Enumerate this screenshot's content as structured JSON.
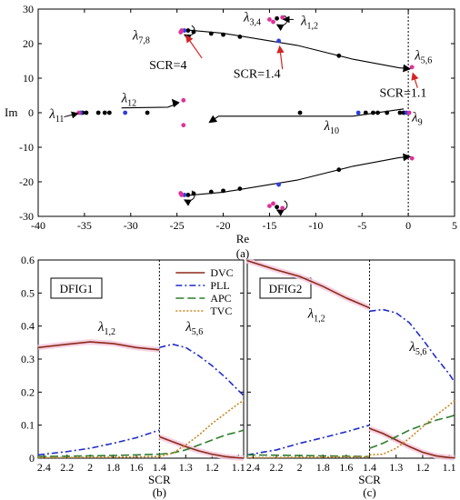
{
  "chart_data": [
    {
      "id": "a",
      "type": "scatter",
      "panel_label": "(a)",
      "xlabel": "Re",
      "ylabel": "Im",
      "xlim": [
        -40,
        5
      ],
      "ylim": [
        -30,
        30
      ],
      "xticks": [
        "-40",
        "-35",
        "-30",
        "-25",
        "-20",
        "-15",
        "-10",
        "-5",
        "0",
        "5"
      ],
      "xtick_values": [
        -40,
        -35,
        -30,
        -25,
        -20,
        -15,
        -10,
        -5,
        0,
        5
      ],
      "yticks": [
        "-30",
        "-20",
        "-10",
        "0",
        "10",
        "20",
        "30"
      ],
      "ytick_values": [
        -30,
        -20,
        -10,
        0,
        10,
        20,
        30
      ],
      "reference_line_x": 0,
      "series": [
        {
          "color": "#000000",
          "points": [
            [
              -35.2,
              0
            ],
            [
              -34.8,
              0
            ],
            [
              -33.5,
              0
            ],
            [
              -32.8,
              0
            ],
            [
              -32.3,
              0
            ],
            [
              -28.2,
              0
            ],
            [
              -23.8,
              23.8
            ],
            [
              -23.2,
              23.4
            ],
            [
              -21.3,
              22.9
            ],
            [
              -20.0,
              22.6
            ],
            [
              -18.2,
              22.0
            ],
            [
              -14.2,
              27.3
            ],
            [
              -7.5,
              16.5
            ],
            [
              -23.8,
              -23.8
            ],
            [
              -23.2,
              -23.4
            ],
            [
              -21.3,
              -22.9
            ],
            [
              -20.0,
              -22.6
            ],
            [
              -18.2,
              -22.0
            ],
            [
              -14.2,
              -27.3
            ],
            [
              -7.5,
              -16.5
            ],
            [
              -11.7,
              0
            ],
            [
              -4.6,
              0
            ],
            [
              -3.8,
              0
            ],
            [
              -3.3,
              0
            ],
            [
              -2.3,
              0
            ],
            [
              -0.9,
              0
            ],
            [
              -0.5,
              0
            ]
          ]
        },
        {
          "color": "#2b3fe0",
          "points": [
            [
              -35.4,
              0
            ],
            [
              -30.6,
              0
            ],
            [
              -24.2,
              23.8
            ],
            [
              -24.2,
              -23.8
            ],
            [
              -14.0,
              20.8
            ],
            [
              -14.0,
              -20.8
            ],
            [
              -5.4,
              0
            ],
            [
              -0.2,
              0
            ]
          ]
        },
        {
          "color": "#e0319a",
          "points": [
            [
              -35.6,
              0
            ],
            [
              -24.6,
              23.3
            ],
            [
              -24.6,
              -23.3
            ],
            [
              -24.5,
              23.8
            ],
            [
              -24.5,
              -23.8
            ],
            [
              -24.3,
              3.6
            ],
            [
              -24.3,
              -3.6
            ],
            [
              -15.0,
              27.0
            ],
            [
              -15.0,
              -27.0
            ],
            [
              -14.6,
              26.3
            ],
            [
              -14.6,
              -26.3
            ],
            [
              -13.6,
              27.6
            ],
            [
              -13.6,
              -27.6
            ],
            [
              0.4,
              13.2
            ],
            [
              0.4,
              -13.2
            ],
            [
              0.1,
              0
            ]
          ]
        }
      ],
      "trajectories": [
        [
          [
            -24.1,
            24.0
          ],
          [
            -20,
            23.0
          ],
          [
            -12,
            19.5
          ],
          [
            -6,
            15.5
          ],
          [
            -1,
            13.0
          ],
          [
            0.2,
            12.7
          ]
        ],
        [
          [
            -24.1,
            -24.0
          ],
          [
            -20,
            -23.0
          ],
          [
            -12,
            -19.5
          ],
          [
            -6,
            -15.5
          ],
          [
            -1,
            -13.0
          ],
          [
            0.2,
            -12.7
          ]
        ],
        [
          [
            -31.0,
            1.4
          ],
          [
            -26.0,
            1.6
          ],
          [
            -25.1,
            2.5
          ],
          [
            -25.5,
            3.8
          ]
        ],
        [
          [
            -0.5,
            1.1
          ],
          [
            -6.0,
            -1.0
          ],
          [
            -20.5,
            -1.0
          ],
          [
            -21.5,
            -2.8
          ]
        ]
      ],
      "annotations": [
        {
          "text": "λ",
          "sub": "3,4",
          "x": -17.8,
          "y": 26.4
        },
        {
          "text": "λ",
          "sub": "1,2",
          "x": -11.6,
          "y": 25.4
        },
        {
          "text": "λ",
          "sub": "7,8",
          "x": -29.8,
          "y": 21.2
        },
        {
          "text": "λ",
          "sub": "5,6",
          "x": 0.7,
          "y": 15.4
        },
        {
          "text": "λ",
          "sub": "12",
          "x": -31.0,
          "y": 3.0
        },
        {
          "text": "λ",
          "sub": "11",
          "x": -38.8,
          "y": -1.6
        },
        {
          "text": "λ",
          "sub": "9",
          "x": 0.4,
          "y": -2.5
        },
        {
          "text": "λ",
          "sub": "10",
          "x": -9.1,
          "y": -5.0
        },
        {
          "text": "SCR=4",
          "sub": "",
          "x": -28.0,
          "y": 12.6
        },
        {
          "text": "SCR=1.4",
          "sub": "",
          "x": -18.9,
          "y": 10.1
        },
        {
          "text": "SCR=1.1",
          "sub": "",
          "x": -3.1,
          "y": 4.6
        }
      ]
    },
    {
      "id": "b",
      "type": "line",
      "panel_label": "(b)",
      "box_label": "DFIG1",
      "xlabel": "SCR",
      "ylabel": "",
      "ylim": [
        0,
        0.6
      ],
      "yticks": [
        "0",
        "0.1",
        "0.2",
        "0.3",
        "0.4",
        "0.5",
        "0.6"
      ],
      "ytick_values": [
        0,
        0.1,
        0.2,
        0.3,
        0.4,
        0.5,
        0.6
      ],
      "xticks": [
        "2.4",
        "2.2",
        "2",
        "1.8",
        "1.6",
        "1.4",
        "1.3",
        "1.2",
        "1.1"
      ],
      "x_split": 1.4,
      "legend": {
        "position": "top-right",
        "entries": [
          "DVC",
          "PLL",
          "APC",
          "TVC"
        ]
      },
      "series_annotations": [
        {
          "text": "λ",
          "sub": "1,2",
          "x": 1.93,
          "y": 0.385
        },
        {
          "text": "λ",
          "sub": "5,6",
          "x": 1.3,
          "y": 0.385
        }
      ],
      "series": [
        {
          "name": "DVC",
          "color": "#8b2a1c",
          "dash": "",
          "x": [
            2.45,
            2.2,
            2.0,
            1.8,
            1.6,
            1.4,
            1.4,
            1.35,
            1.3,
            1.25,
            1.2,
            1.15,
            1.1,
            1.08
          ],
          "values": [
            0.335,
            0.345,
            0.352,
            0.347,
            0.335,
            0.328,
            0.065,
            0.05,
            0.035,
            0.022,
            0.012,
            0.005,
            0.001,
            0
          ]
        },
        {
          "name": "PLL",
          "color": "#1f2bc8",
          "dash": "7 3 2 3",
          "x": [
            2.45,
            2.2,
            2.0,
            1.8,
            1.6,
            1.4,
            1.4,
            1.35,
            1.3,
            1.25,
            1.2,
            1.15,
            1.1,
            1.08
          ],
          "values": [
            0.01,
            0.02,
            0.03,
            0.045,
            0.062,
            0.085,
            0.335,
            0.345,
            0.335,
            0.31,
            0.28,
            0.245,
            0.205,
            0.19
          ]
        },
        {
          "name": "APC",
          "color": "#2f7d2f",
          "dash": "9 4",
          "x": [
            2.45,
            2.2,
            2.0,
            1.8,
            1.6,
            1.4,
            1.4,
            1.35,
            1.3,
            1.25,
            1.2,
            1.15,
            1.1,
            1.08
          ],
          "values": [
            0.005,
            0.006,
            0.007,
            0.008,
            0.01,
            0.012,
            0.012,
            0.016,
            0.025,
            0.04,
            0.055,
            0.07,
            0.08,
            0.085
          ]
        },
        {
          "name": "TVC",
          "color": "#c8861d",
          "dash": "2 2",
          "x": [
            2.45,
            2.2,
            2.0,
            1.8,
            1.6,
            1.4,
            1.4,
            1.35,
            1.3,
            1.25,
            1.2,
            1.15,
            1.1,
            1.08
          ],
          "values": [
            0.002,
            0.002,
            0.003,
            0.003,
            0.004,
            0.005,
            0.005,
            0.015,
            0.04,
            0.07,
            0.105,
            0.135,
            0.165,
            0.175
          ]
        }
      ]
    },
    {
      "id": "c",
      "type": "line",
      "panel_label": "(c)",
      "box_label": "DFIG2",
      "xlabel": "SCR",
      "ylabel": "",
      "ylim": [
        0,
        0.6
      ],
      "xticks": [
        "2.4",
        "2.2",
        "2",
        "1.8",
        "1.6",
        "1.4",
        "1.3",
        "1.2",
        "1.1"
      ],
      "x_split": 1.4,
      "series_annotations": [
        {
          "text": "λ",
          "sub": "1,2",
          "x": 1.93,
          "y": 0.425
        },
        {
          "text": "λ",
          "sub": "5,6",
          "x": 1.25,
          "y": 0.325
        }
      ],
      "series": [
        {
          "name": "DVC",
          "color": "#8b2a1c",
          "dash": "",
          "x": [
            2.45,
            2.2,
            2.0,
            1.8,
            1.6,
            1.4,
            1.4,
            1.35,
            1.3,
            1.25,
            1.2,
            1.15,
            1.1,
            1.08
          ],
          "values": [
            0.598,
            0.57,
            0.55,
            0.52,
            0.485,
            0.455,
            0.09,
            0.075,
            0.055,
            0.035,
            0.018,
            0.007,
            0.002,
            0.001
          ]
        },
        {
          "name": "PLL",
          "color": "#1f2bc8",
          "dash": "7 3 2 3",
          "x": [
            2.45,
            2.2,
            2.0,
            1.8,
            1.6,
            1.4,
            1.4,
            1.35,
            1.3,
            1.25,
            1.2,
            1.15,
            1.1,
            1.08
          ],
          "values": [
            0.01,
            0.025,
            0.045,
            0.062,
            0.08,
            0.1,
            0.445,
            0.45,
            0.44,
            0.41,
            0.36,
            0.305,
            0.255,
            0.23
          ]
        },
        {
          "name": "APC",
          "color": "#2f7d2f",
          "dash": "9 4",
          "x": [
            2.45,
            2.2,
            2.0,
            1.8,
            1.6,
            1.4,
            1.4,
            1.35,
            1.3,
            1.25,
            1.2,
            1.15,
            1.1,
            1.08
          ],
          "values": [
            0.01,
            0.009,
            0.008,
            0.007,
            0.006,
            0.005,
            0.03,
            0.045,
            0.065,
            0.085,
            0.1,
            0.115,
            0.125,
            0.13
          ]
        },
        {
          "name": "TVC",
          "color": "#c8861d",
          "dash": "2 2",
          "x": [
            2.45,
            2.2,
            2.0,
            1.8,
            1.6,
            1.4,
            1.4,
            1.35,
            1.3,
            1.25,
            1.2,
            1.15,
            1.1,
            1.08
          ],
          "values": [
            0.002,
            0.002,
            0.003,
            0.003,
            0.004,
            0.004,
            0.01,
            0.012,
            0.03,
            0.06,
            0.095,
            0.13,
            0.16,
            0.175
          ]
        }
      ]
    }
  ]
}
